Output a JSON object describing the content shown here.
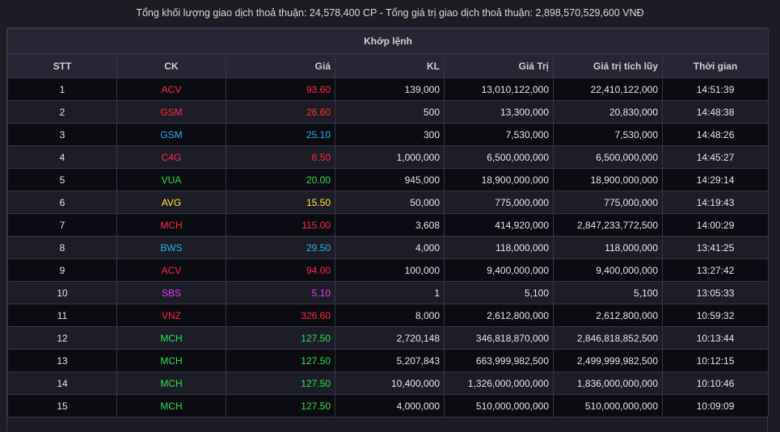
{
  "summary": "Tổng khối lượng giao dịch thoả thuận: 24,578,400 CP - Tổng giá trị giao dịch thoả thuận: 2,898,570,529,600 VNĐ",
  "group_header": "Khớp lệnh",
  "columns": [
    "STT",
    "CK",
    "Giá",
    "KL",
    "Giá Trị",
    "Giá trị tích lũy",
    "Thời gian"
  ],
  "colors": {
    "red": "#ff2a3d",
    "blue": "#26b2ee",
    "green": "#2ce04a",
    "yellow": "#ffe936",
    "purple": "#e43cf0",
    "neutral": "#e6e6e6"
  },
  "rows": [
    {
      "stt": "1",
      "ck": "ACV",
      "gia": "93.60",
      "kl": "139,000",
      "gia_tri": "13,010,122,000",
      "tich_luy": "22,410,122,000",
      "thoi_gian": "14:51:39",
      "color": "red"
    },
    {
      "stt": "2",
      "ck": "GSM",
      "gia": "26.60",
      "kl": "500",
      "gia_tri": "13,300,000",
      "tich_luy": "20,830,000",
      "thoi_gian": "14:48:38",
      "color": "red"
    },
    {
      "stt": "3",
      "ck": "GSM",
      "gia": "25.10",
      "kl": "300",
      "gia_tri": "7,530,000",
      "tich_luy": "7,530,000",
      "thoi_gian": "14:48:26",
      "color": "blue"
    },
    {
      "stt": "4",
      "ck": "C4G",
      "gia": "6.50",
      "kl": "1,000,000",
      "gia_tri": "6,500,000,000",
      "tich_luy": "6,500,000,000",
      "thoi_gian": "14:45:27",
      "color": "red"
    },
    {
      "stt": "5",
      "ck": "VUA",
      "gia": "20.00",
      "kl": "945,000",
      "gia_tri": "18,900,000,000",
      "tich_luy": "18,900,000,000",
      "thoi_gian": "14:29:14",
      "color": "green"
    },
    {
      "stt": "6",
      "ck": "AVG",
      "gia": "15.50",
      "kl": "50,000",
      "gia_tri": "775,000,000",
      "tich_luy": "775,000,000",
      "thoi_gian": "14:19:43",
      "color": "yellow"
    },
    {
      "stt": "7",
      "ck": "MCH",
      "gia": "115.00",
      "kl": "3,608",
      "gia_tri": "414,920,000",
      "tich_luy": "2,847,233,772,500",
      "thoi_gian": "14:00:29",
      "color": "red"
    },
    {
      "stt": "8",
      "ck": "BWS",
      "gia": "29.50",
      "kl": "4,000",
      "gia_tri": "118,000,000",
      "tich_luy": "118,000,000",
      "thoi_gian": "13:41:25",
      "color": "blue"
    },
    {
      "stt": "9",
      "ck": "ACV",
      "gia": "94.00",
      "kl": "100,000",
      "gia_tri": "9,400,000,000",
      "tich_luy": "9,400,000,000",
      "thoi_gian": "13:27:42",
      "color": "red"
    },
    {
      "stt": "10",
      "ck": "SBS",
      "gia": "5.10",
      "kl": "1",
      "gia_tri": "5,100",
      "tich_luy": "5,100",
      "thoi_gian": "13:05:33",
      "color": "purple"
    },
    {
      "stt": "11",
      "ck": "VNZ",
      "gia": "326.60",
      "kl": "8,000",
      "gia_tri": "2,612,800,000",
      "tich_luy": "2,612,800,000",
      "thoi_gian": "10:59:32",
      "color": "red"
    },
    {
      "stt": "12",
      "ck": "MCH",
      "gia": "127.50",
      "kl": "2,720,148",
      "gia_tri": "346,818,870,000",
      "tich_luy": "2,846,818,852,500",
      "thoi_gian": "10:13:44",
      "color": "green"
    },
    {
      "stt": "13",
      "ck": "MCH",
      "gia": "127.50",
      "kl": "5,207,843",
      "gia_tri": "663,999,982,500",
      "tich_luy": "2,499,999,982,500",
      "thoi_gian": "10:12:15",
      "color": "green"
    },
    {
      "stt": "14",
      "ck": "MCH",
      "gia": "127.50",
      "kl": "10,400,000",
      "gia_tri": "1,326,000,000,000",
      "tich_luy": "1,836,000,000,000",
      "thoi_gian": "10:10:46",
      "color": "green"
    },
    {
      "stt": "15",
      "ck": "MCH",
      "gia": "127.50",
      "kl": "4,000,000",
      "gia_tri": "510,000,000,000",
      "tich_luy": "510,000,000,000",
      "thoi_gian": "10:09:09",
      "color": "green"
    }
  ]
}
